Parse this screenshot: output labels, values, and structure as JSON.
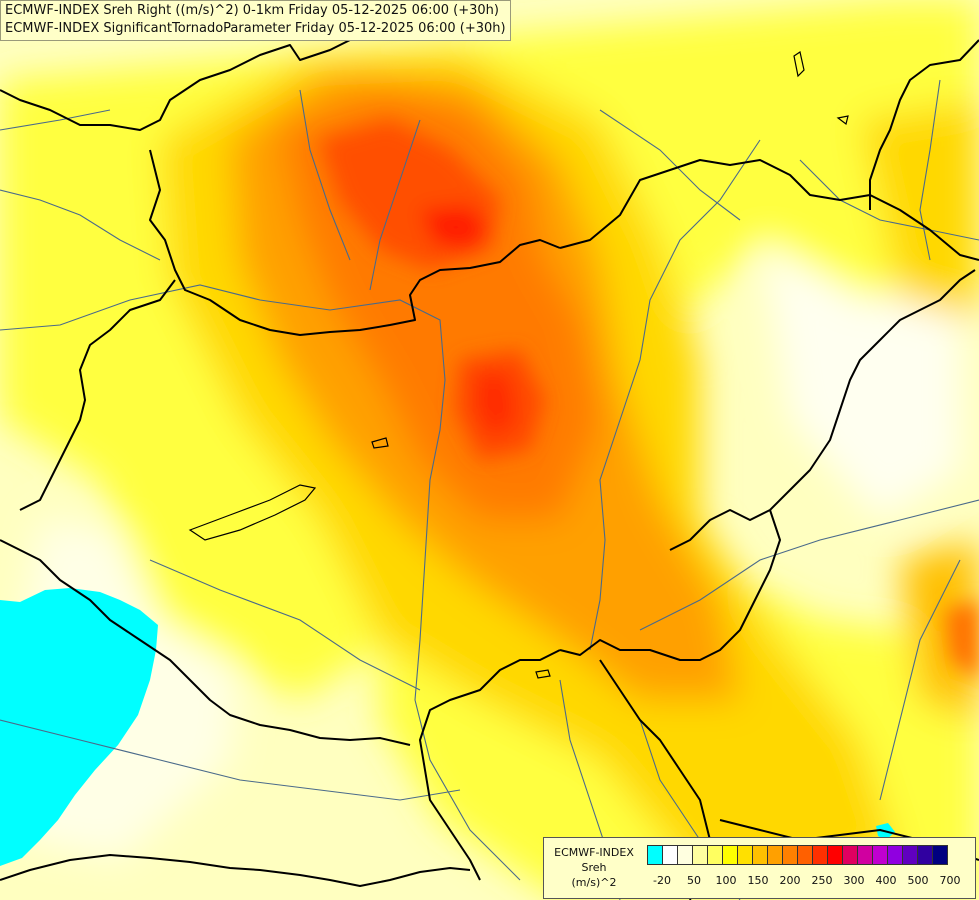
{
  "titles": {
    "line1": "ECMWF-INDEX Sreh Right ((m/s)^2) 0-1km Friday 05-12-2025 06:00 (+30h)",
    "line2": "ECMWF-INDEX SignificantTornadoParameter Friday 05-12-2025 06:00 (+30h)"
  },
  "legend": {
    "title_line1": "ECMWF-INDEX",
    "title_line2": "Sreh",
    "title_line3": "(m/s)^2",
    "tick_labels": [
      "-20",
      "50",
      "100",
      "150",
      "200",
      "250",
      "300",
      "400",
      "500",
      "700"
    ],
    "swatch_colors": [
      "#00ffff",
      "#ffffff",
      "#ffffe0",
      "#ffffa0",
      "#ffff60",
      "#ffff00",
      "#ffe000",
      "#ffc000",
      "#ffa000",
      "#ff8000",
      "#ff6000",
      "#ff3000",
      "#ff0000",
      "#e00060",
      "#d000a0",
      "#c000d0",
      "#9000e0",
      "#6000c0",
      "#3000a0",
      "#000080"
    ]
  },
  "map_colors": {
    "background": "#ffffc0",
    "cyan": "#00ffff",
    "borders": "#000000",
    "rivers": "#4a6a8a"
  }
}
